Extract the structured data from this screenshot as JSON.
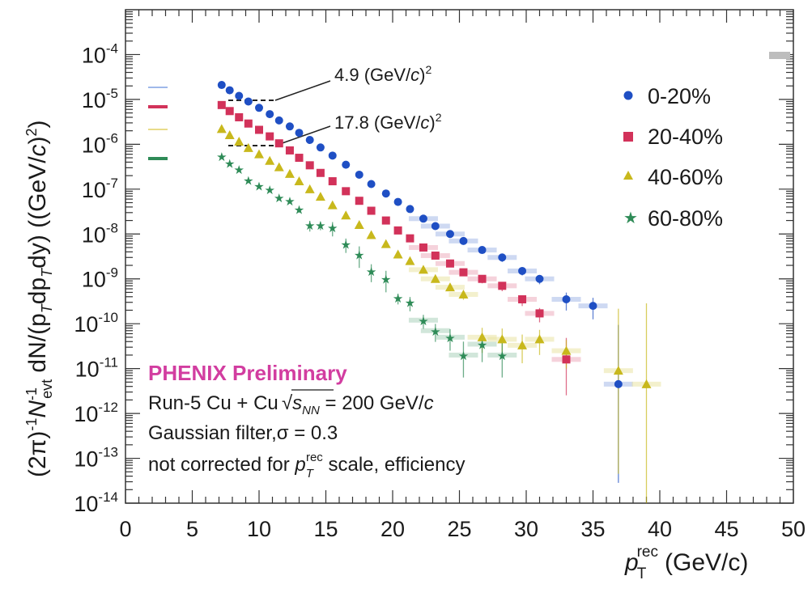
{
  "chart_data": {
    "type": "scatter",
    "title": "",
    "xlabel": "p_T^rec (GeV/c)",
    "xlabel_main": "p",
    "xlabel_sub": "T",
    "xlabel_sup": "rec",
    "xlabel_unit": "(GeV/c)",
    "ylabel": "(2π)^-1 N_evt^-1 dN/(p_T dp_T dy) ((GeV/c)^2)",
    "ylabel_parts": {
      "a": "(2π)",
      "a_sup": "-1",
      "b": "N",
      "b_sub": "evt",
      "b_sup": "-1",
      "c": " dN/(p",
      "c_sub": "T",
      "d": "dp",
      "d_sub": "T",
      "e": "dy) ((GeV/",
      "e_it": "c",
      "f": ")",
      "f_sup": "2",
      "g": ")"
    },
    "xlim": [
      0,
      50
    ],
    "ylim_log10": [
      -14,
      -3
    ],
    "x_ticks": [
      "0",
      "5",
      "10",
      "15",
      "20",
      "25",
      "30",
      "35",
      "40",
      "45",
      "50"
    ],
    "y_ticks": [
      {
        "base": "10",
        "exp": "-4"
      },
      {
        "base": "10",
        "exp": "-5"
      },
      {
        "base": "10",
        "exp": "-6"
      },
      {
        "base": "10",
        "exp": "-7"
      },
      {
        "base": "10",
        "exp": "-8"
      },
      {
        "base": "10",
        "exp": "-9"
      },
      {
        "base": "10",
        "exp": "-10"
      },
      {
        "base": "10",
        "exp": "-11"
      },
      {
        "base": "10",
        "exp": "-12"
      },
      {
        "base": "10",
        "exp": "-13"
      },
      {
        "base": "10",
        "exp": "-14"
      }
    ],
    "series": [
      {
        "name": "0-20%",
        "color": "#1f4fc4",
        "marker": "circle",
        "x": [
          7.2,
          7.8,
          8.5,
          9.2,
          10.0,
          10.8,
          11.5,
          12.3,
          13.0,
          13.8,
          14.6,
          15.5,
          16.5,
          17.5,
          18.4,
          19.5,
          20.4,
          21.3,
          22.3,
          23.2,
          24.3,
          25.3,
          26.7,
          28.2,
          29.7,
          31.0,
          33.0,
          35.0,
          36.9
        ],
        "y": [
          2.1e-05,
          1.6e-05,
          1.2e-05,
          9e-06,
          6.5e-06,
          4.7e-06,
          3.4e-06,
          2.5e-06,
          1.8e-06,
          1.25e-06,
          8.5e-07,
          5.6e-07,
          3.5e-07,
          2.1e-07,
          1.3e-07,
          8e-08,
          5.2e-08,
          3.6e-08,
          2.2e-08,
          1.5e-08,
          1e-08,
          7e-09,
          4.4e-09,
          3e-09,
          1.5e-09,
          1e-09,
          3.5e-10,
          2.5e-10,
          4.5e-12
        ],
        "yerr_log": [
          0,
          0,
          0,
          0,
          0,
          0,
          0,
          0,
          0,
          0,
          0,
          0,
          0,
          0,
          0,
          0,
          0,
          0,
          0,
          0,
          0,
          0,
          0.08,
          0.1,
          0.1,
          0.12,
          0.25,
          0.3,
          2.2
        ]
      },
      {
        "name": "20-40%",
        "color": "#d2325a",
        "marker": "square",
        "x": [
          7.2,
          7.8,
          8.5,
          9.2,
          10.0,
          10.8,
          11.5,
          12.3,
          13.0,
          13.8,
          14.6,
          15.5,
          16.5,
          17.5,
          18.4,
          19.5,
          20.4,
          21.3,
          22.3,
          23.2,
          24.3,
          25.3,
          26.7,
          28.2,
          29.7,
          31.0,
          33.0
        ],
        "y": [
          7.5e-06,
          5.5e-06,
          4e-06,
          2.9e-06,
          2.1e-06,
          1.5e-06,
          1.05e-06,
          7.3e-07,
          5e-07,
          3.4e-07,
          2.3e-07,
          1.5e-07,
          9e-08,
          5.5e-08,
          3.3e-08,
          2e-08,
          1.2e-08,
          8e-09,
          5e-09,
          3.3e-09,
          2.2e-09,
          1.4e-09,
          1e-09,
          7e-10,
          3.5e-10,
          1.7e-10,
          1.6e-11
        ],
        "yerr_log": [
          0,
          0,
          0,
          0,
          0,
          0,
          0,
          0,
          0,
          0,
          0,
          0,
          0,
          0,
          0,
          0,
          0,
          0,
          0,
          0,
          0,
          0,
          0.1,
          0.12,
          0.15,
          0.2,
          0.8
        ]
      },
      {
        "name": "40-60%",
        "color": "#c8b81c",
        "marker": "triangle",
        "x": [
          7.2,
          7.8,
          8.5,
          9.2,
          10.0,
          10.8,
          11.5,
          12.3,
          13.0,
          13.8,
          14.6,
          15.5,
          16.5,
          17.5,
          18.4,
          19.5,
          20.4,
          21.3,
          22.3,
          23.2,
          24.3,
          25.3,
          26.7,
          28.2,
          29.7,
          31.0,
          33.0,
          36.9,
          39.0
        ],
        "y": [
          2.2e-06,
          1.6e-06,
          1.15e-06,
          8.3e-07,
          6e-07,
          4.3e-07,
          3.1e-07,
          2.2e-07,
          1.5e-07,
          1e-07,
          6.8e-08,
          4.4e-08,
          2.6e-08,
          1.6e-08,
          9.5e-09,
          6e-09,
          3.5e-09,
          2.5e-09,
          1.6e-09,
          1e-09,
          6.5e-10,
          4.5e-10,
          5e-11,
          4.5e-11,
          3.3e-11,
          4.5e-11,
          2.5e-11,
          9e-12,
          4.5e-12
        ],
        "yerr_log": [
          0,
          0,
          0,
          0,
          0,
          0,
          0,
          0,
          0,
          0,
          0,
          0,
          0,
          0,
          0,
          0,
          0,
          0,
          0,
          0,
          0.08,
          0.12,
          0.35,
          0.4,
          0.4,
          0.35,
          0.4,
          2.3,
          3.0
        ]
      },
      {
        "name": "60-80%",
        "color": "#2e8b57",
        "marker": "star",
        "x": [
          7.2,
          7.8,
          8.5,
          9.2,
          10.0,
          10.8,
          11.5,
          12.3,
          13.0,
          13.8,
          14.6,
          15.5,
          16.5,
          17.5,
          18.4,
          19.5,
          20.4,
          21.3,
          22.3,
          23.2,
          24.3,
          25.3,
          26.7,
          28.2
        ],
        "y": [
          5.5e-07,
          3.8e-07,
          2.8e-07,
          1.6e-07,
          1.2e-07,
          1e-07,
          6.5e-08,
          5.5e-08,
          3.6e-08,
          1.6e-08,
          1.6e-08,
          1.4e-08,
          6e-09,
          3.5e-09,
          1.5e-09,
          1e-09,
          3.8e-10,
          3e-10,
          1.2e-10,
          7e-11,
          5e-11,
          2e-11,
          3.5e-11,
          2e-11
        ],
        "yerr_log": [
          0,
          0,
          0,
          0,
          0,
          0,
          0,
          0,
          0.08,
          0.15,
          0.12,
          0.2,
          0.2,
          0.3,
          0.25,
          0.3,
          0.15,
          0.2,
          0.2,
          0.25,
          0.3,
          0.5,
          0.4,
          0.5
        ]
      }
    ],
    "annotations": [
      {
        "text": "4.9 (GeV/",
        "it": "c",
        "close": ")",
        "sup": "2"
      },
      {
        "text": "17.8 (GeV/",
        "it": "c",
        "close": ")",
        "sup": "2"
      }
    ],
    "info": {
      "experiment": "PHENIX Preliminary",
      "line1": "Run-5 Cu + Cu",
      "sqrt_s": "s",
      "sqrt_sub": "NN",
      "line1_end": " = 200 GeV/",
      "line1_it": "c",
      "line2": "Gaussian filter,σ = 0.3",
      "line3_a": "not corrected for ",
      "line3_p": "p",
      "line3_sub": "T",
      "line3_sup": "rec",
      "line3_b": " scale, efficiency"
    },
    "legend_position": "top-right",
    "grid": false
  }
}
